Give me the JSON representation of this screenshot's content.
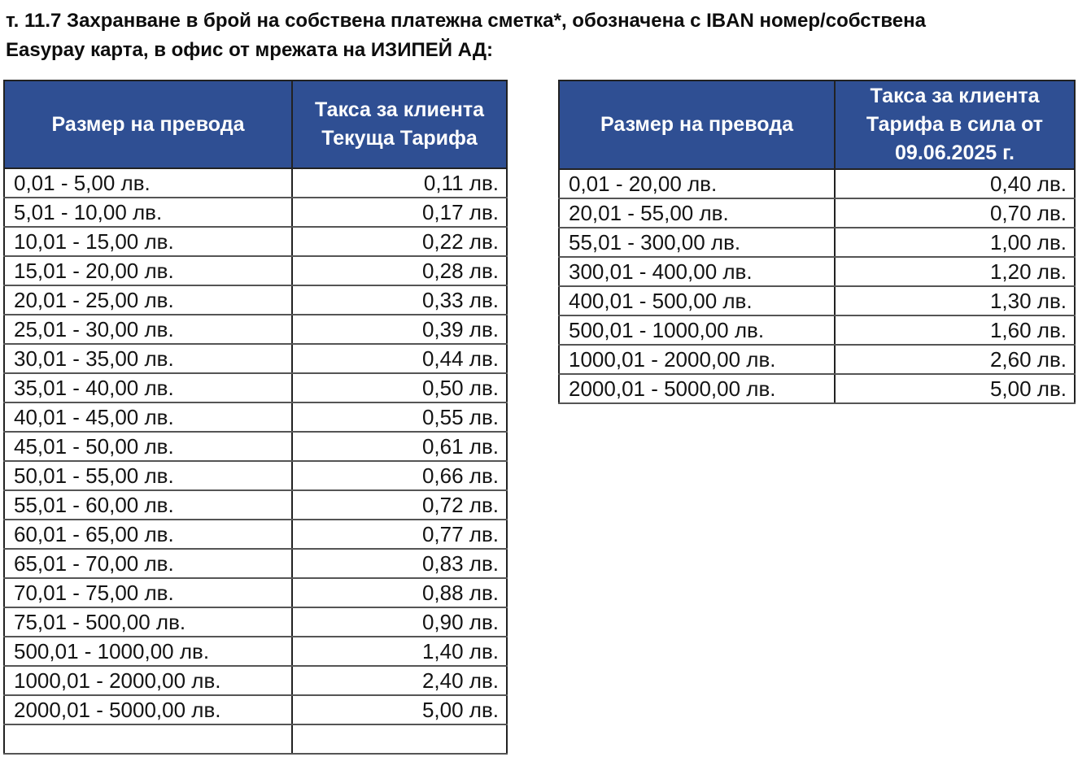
{
  "page": {
    "title_lines": [
      "т. 11.7 Захранване в брой на собствена платежна сметка*, обозначена с IBAN номер/собствена",
      "Easypay карта, в офис от мрежата на ИЗИПЕЙ АД:"
    ]
  },
  "colors": {
    "header_bg": "#2f4f93",
    "header_text": "#ffffff",
    "border_vertical": "#222222",
    "border_horizontal": "#555555",
    "page_bg": "#ffffff",
    "cell_text": "#141414"
  },
  "tables": [
    {
      "id": "current-tariff-table",
      "col_headers": [
        "Размер на превода",
        "Такса за клиента\nТекуща Тарифа"
      ],
      "rows": [
        {
          "range": "0,01 - 5,00 лв.",
          "fee": "0,11 лв."
        },
        {
          "range": "5,01 - 10,00 лв.",
          "fee": "0,17 лв."
        },
        {
          "range": "10,01 - 15,00 лв.",
          "fee": "0,22 лв."
        },
        {
          "range": "15,01 - 20,00 лв.",
          "fee": "0,28 лв."
        },
        {
          "range": "20,01 - 25,00 лв.",
          "fee": "0,33 лв."
        },
        {
          "range": "25,01 - 30,00 лв.",
          "fee": "0,39 лв."
        },
        {
          "range": "30,01 - 35,00 лв.",
          "fee": "0,44 лв."
        },
        {
          "range": "35,01 - 40,00 лв.",
          "fee": "0,50 лв."
        },
        {
          "range": "40,01 - 45,00 лв.",
          "fee": "0,55 лв."
        },
        {
          "range": "45,01 - 50,00 лв.",
          "fee": "0,61 лв."
        },
        {
          "range": "50,01 - 55,00 лв.",
          "fee": "0,66 лв."
        },
        {
          "range": "55,01 - 60,00 лв.",
          "fee": "0,72 лв."
        },
        {
          "range": "60,01 - 65,00 лв.",
          "fee": "0,77 лв."
        },
        {
          "range": "65,01 - 70,00 лв.",
          "fee": "0,83 лв."
        },
        {
          "range": "70,01 - 75,00 лв.",
          "fee": "0,88 лв."
        },
        {
          "range": "75,01 - 500,00 лв.",
          "fee": "0,90 лв."
        },
        {
          "range": "500,01 - 1000,00 лв.",
          "fee": "1,40 лв."
        },
        {
          "range": "1000,01 - 2000,00 лв.",
          "fee": "2,40 лв."
        },
        {
          "range": "2000,01 - 5000,00 лв.",
          "fee": "5,00 лв."
        }
      ],
      "partial_next_row_visible": true
    },
    {
      "id": "new-tariff-table",
      "col_headers": [
        "Размер на превода",
        "Такса за клиента\nТарифа в сила от\n09.06.2025 г."
      ],
      "rows": [
        {
          "range": "0,01 - 20,00 лв.",
          "fee": "0,40 лв."
        },
        {
          "range": "20,01 - 55,00 лв.",
          "fee": "0,70 лв."
        },
        {
          "range": "55,01 - 300,00 лв.",
          "fee": "1,00 лв."
        },
        {
          "range": "300,01 - 400,00 лв.",
          "fee": "1,20 лв."
        },
        {
          "range": "400,01 - 500,00 лв.",
          "fee": "1,30 лв."
        },
        {
          "range": "500,01 - 1000,00 лв.",
          "fee": "1,60 лв."
        },
        {
          "range": "1000,01 - 2000,00 лв.",
          "fee": "2,60 лв."
        },
        {
          "range": "2000,01 - 5000,00 лв.",
          "fee": "5,00 лв."
        }
      ],
      "partial_next_row_visible": false
    }
  ]
}
